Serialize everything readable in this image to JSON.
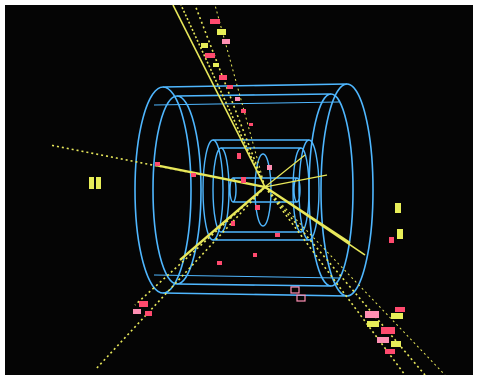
{
  "figure": {
    "kind": "particle collision event display",
    "background_color": "#050505",
    "frame_color": "#ffffff",
    "detector_color": "#4fb7ff",
    "track_color": "#e8e85a",
    "hit_color_red": "#ff4a6e",
    "hit_color_yellow": "#e8ee58",
    "hit_color_pink": "#ff8fb3"
  },
  "icons": {
    "detector": "cylinder-detector-icon",
    "tracks": "particle-tracks-icon",
    "hits": "energy-deposit-icon"
  }
}
